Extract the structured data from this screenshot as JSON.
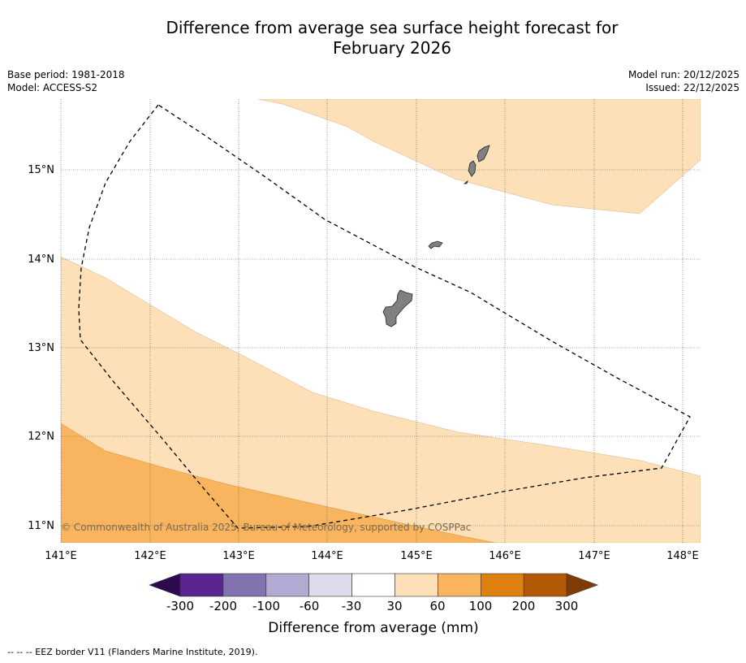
{
  "title": {
    "line1": "Difference from average sea surface height forecast for",
    "line2": "February 2026"
  },
  "meta": {
    "base_period": "Base period: 1981-2018",
    "model": "Model: ACCESS-S2",
    "model_run": "Model run: 20/12/2025",
    "issued": "Issued: 22/12/2025"
  },
  "map": {
    "lon_ticks": [
      "141°E",
      "142°E",
      "143°E",
      "144°E",
      "145°E",
      "146°E",
      "147°E",
      "148°E"
    ],
    "lat_ticks": [
      "15°N",
      "14°N",
      "13°N",
      "12°N",
      "11°N"
    ],
    "copyright": "© Commonwealth of Australia 2025, Bureau of Meteorology, supported by COSPPac"
  },
  "colorbar": {
    "labels": [
      "-300",
      "-200",
      "-100",
      "-60",
      "-30",
      "30",
      "60",
      "100",
      "200",
      "300"
    ],
    "colors": [
      "#2d0a4e",
      "#5a2590",
      "#8272b0",
      "#b2aad2",
      "#dcdcec",
      "#ffffff",
      "#fde0b8",
      "#f9b45f",
      "#e08012",
      "#b35807",
      "#7f3b08"
    ],
    "title": "Difference from average (mm)"
  },
  "footer": {
    "legend": "--  --  -- EEZ border V11 (Flanders Marine Institute, 2019)."
  }
}
